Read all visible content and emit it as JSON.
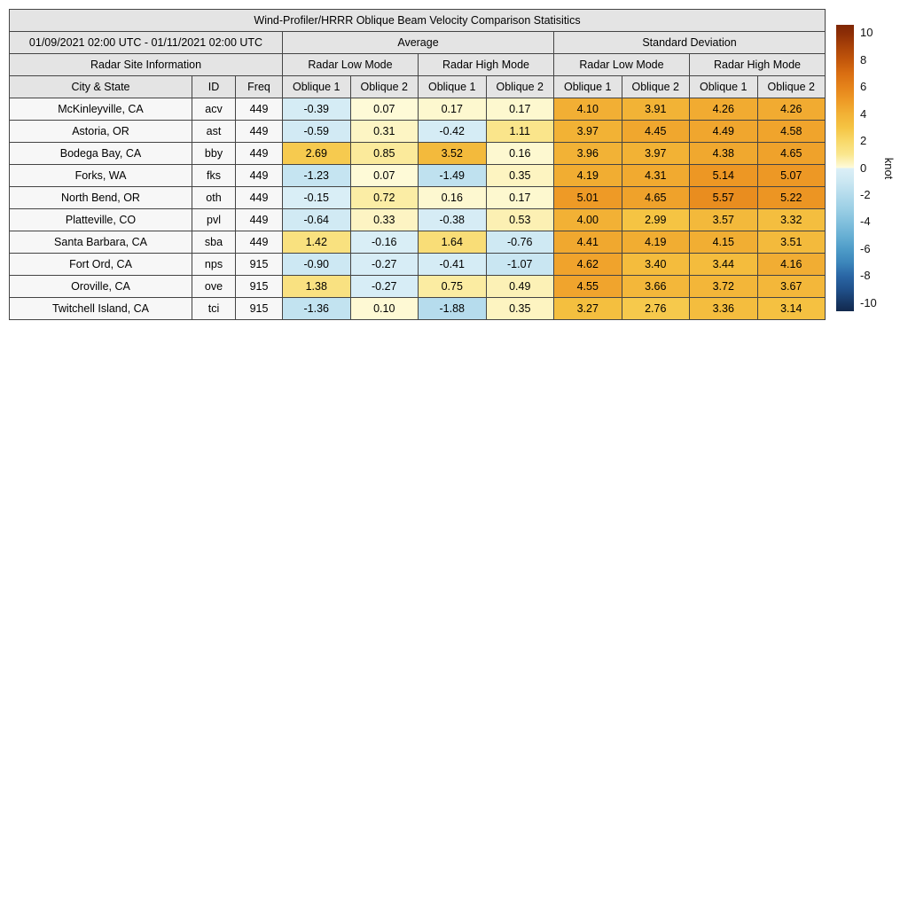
{
  "title": "Wind-Profiler/HRRR Oblique Beam Velocity Comparison Statisitics",
  "period": "01/09/2021 02:00 UTC - 01/11/2021 02:00 UTC",
  "groups": {
    "average": "Average",
    "std": "Standard Deviation"
  },
  "site_info_label": "Radar Site Information",
  "mode_labels": [
    "Radar Low Mode",
    "Radar High Mode",
    "Radar Low Mode",
    "Radar High Mode"
  ],
  "col_headers": {
    "city": "City & State",
    "id": "ID",
    "freq": "Freq",
    "oblique1": "Oblique 1",
    "oblique2": "Oblique 2"
  },
  "rows": [
    {
      "city": "McKinleyville, CA",
      "id": "acv",
      "freq": "449",
      "values": [
        -0.39,
        0.07,
        0.17,
        0.17,
        4.1,
        3.91,
        4.26,
        4.26
      ]
    },
    {
      "city": "Astoria, OR",
      "id": "ast",
      "freq": "449",
      "values": [
        -0.59,
        0.31,
        -0.42,
        1.11,
        3.97,
        4.45,
        4.49,
        4.58
      ]
    },
    {
      "city": "Bodega Bay, CA",
      "id": "bby",
      "freq": "449",
      "values": [
        2.69,
        0.85,
        3.52,
        0.16,
        3.96,
        3.97,
        4.38,
        4.65
      ]
    },
    {
      "city": "Forks, WA",
      "id": "fks",
      "freq": "449",
      "values": [
        -1.23,
        0.07,
        -1.49,
        0.35,
        4.19,
        4.31,
        5.14,
        5.07
      ]
    },
    {
      "city": "North Bend, OR",
      "id": "oth",
      "freq": "449",
      "values": [
        -0.15,
        0.72,
        0.16,
        0.17,
        5.01,
        4.65,
        5.57,
        5.22
      ]
    },
    {
      "city": "Platteville, CO",
      "id": "pvl",
      "freq": "449",
      "values": [
        -0.64,
        0.33,
        -0.38,
        0.53,
        4.0,
        2.99,
        3.57,
        3.32
      ]
    },
    {
      "city": "Santa Barbara, CA",
      "id": "sba",
      "freq": "449",
      "values": [
        1.42,
        -0.16,
        1.64,
        -0.76,
        4.41,
        4.19,
        4.15,
        3.51
      ]
    },
    {
      "city": "Fort Ord, CA",
      "id": "nps",
      "freq": "915",
      "values": [
        -0.9,
        -0.27,
        -0.41,
        -1.07,
        4.62,
        3.4,
        3.44,
        4.16
      ]
    },
    {
      "city": "Oroville, CA",
      "id": "ove",
      "freq": "915",
      "values": [
        1.38,
        -0.27,
        0.75,
        0.49,
        4.55,
        3.66,
        3.72,
        3.67
      ]
    },
    {
      "city": "Twitchell Island, CA",
      "id": "tci",
      "freq": "915",
      "values": [
        -1.36,
        0.1,
        -1.88,
        0.35,
        3.27,
        2.76,
        3.36,
        3.14
      ]
    }
  ],
  "colorbar": {
    "label": "knot",
    "ticks": [
      10,
      8,
      6,
      4,
      2,
      0,
      -2,
      -4,
      -6,
      -8,
      -10
    ],
    "vmin": -10.6,
    "vmax": 10.6,
    "colormap": {
      "positive": [
        [
          0,
          "#FEFBDC"
        ],
        [
          1,
          "#FAE78F"
        ],
        [
          2,
          "#F8D869"
        ],
        [
          3,
          "#F5C443"
        ],
        [
          4,
          "#F2B135"
        ],
        [
          5,
          "#EE9A26"
        ],
        [
          6,
          "#E5831A"
        ],
        [
          7,
          "#D96E12"
        ],
        [
          8,
          "#C2560B"
        ],
        [
          9,
          "#A94208"
        ],
        [
          10,
          "#8C2D06"
        ],
        [
          10.6,
          "#7F2704"
        ]
      ],
      "negative": [
        [
          -0.0001,
          "#DCEFF7"
        ],
        [
          -1,
          "#CBE7F2"
        ],
        [
          -2,
          "#B3DBEC"
        ],
        [
          -3,
          "#9CCFE5"
        ],
        [
          -4,
          "#82C0DD"
        ],
        [
          -5,
          "#68B0D4"
        ],
        [
          -6,
          "#4E9CC8"
        ],
        [
          -7,
          "#3C86BB"
        ],
        [
          -8,
          "#2A66A5"
        ],
        [
          -9,
          "#20508A"
        ],
        [
          -10,
          "#173763"
        ],
        [
          -10.6,
          "#12294D"
        ]
      ]
    }
  }
}
